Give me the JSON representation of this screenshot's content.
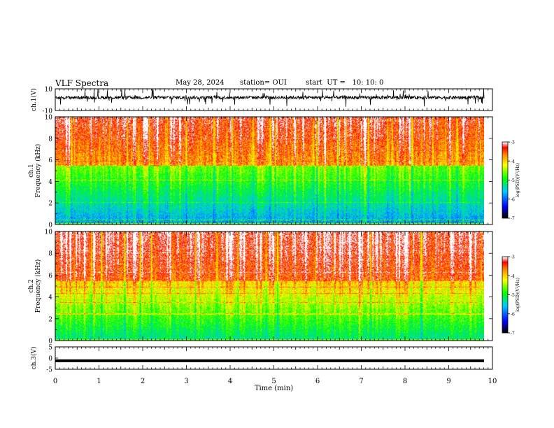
{
  "header": {
    "title": "VLF Spectra",
    "date": "May 28, 2024",
    "station": "station= OUI",
    "start": "start  UT =   10: 10: 0"
  },
  "chart_data": [
    {
      "type": "line",
      "name": "ch1-waveform",
      "ylabel": "ch.1(V)",
      "ylim": [
        -10,
        10
      ],
      "yticks": [
        "10",
        "-10"
      ],
      "xlim": [
        0,
        10
      ],
      "baseline": 2,
      "noise_range": [
        -10,
        10
      ],
      "color": "#000000"
    },
    {
      "type": "heatmap",
      "name": "ch1-spectrogram",
      "ylabel": "ch.1",
      "ylabel2": "Frequency (kHz)",
      "ylim": [
        0,
        10
      ],
      "yticks": [
        "0",
        "2",
        "4",
        "6",
        "8",
        "10"
      ],
      "xlim": [
        0,
        9.8
      ],
      "colorbar": {
        "label": "log(PSD)(V²/Hz)",
        "range": [
          -7,
          -3
        ],
        "ticks": [
          "-3",
          "-4",
          "-5",
          "-6",
          "-7"
        ]
      }
    },
    {
      "type": "heatmap",
      "name": "ch2-spectrogram",
      "ylabel": "ch.2",
      "ylabel2": "Frequency (kHz)",
      "ylim": [
        0,
        10
      ],
      "yticks": [
        "0",
        "2",
        "4",
        "6",
        "8",
        "10"
      ],
      "xlim": [
        0,
        9.8
      ],
      "colorbar": {
        "label": "log(PSD)(V²/Hz)",
        "range": [
          -7,
          -3
        ],
        "ticks": [
          "-3",
          "-4",
          "-5",
          "-6",
          "-7"
        ]
      }
    },
    {
      "type": "line",
      "name": "ch3-waveform",
      "ylabel": "ch.3(V)",
      "ylim": [
        -5,
        5
      ],
      "yticks": [
        "5",
        "0",
        "-5"
      ],
      "xlim": [
        0,
        9.8
      ],
      "value": -1.2,
      "color": "#000000"
    }
  ],
  "xaxis": {
    "label": "Time (min)",
    "range": [
      0,
      10
    ],
    "ticks": [
      "0",
      "1",
      "2",
      "3",
      "4",
      "5",
      "6",
      "7",
      "8",
      "9",
      "10"
    ]
  },
  "colors": {
    "cmap": [
      "#000000",
      "#0000ff",
      "#00c8ff",
      "#00ff00",
      "#ffff00",
      "#ff8000",
      "#ff0000",
      "#ffffff"
    ]
  }
}
